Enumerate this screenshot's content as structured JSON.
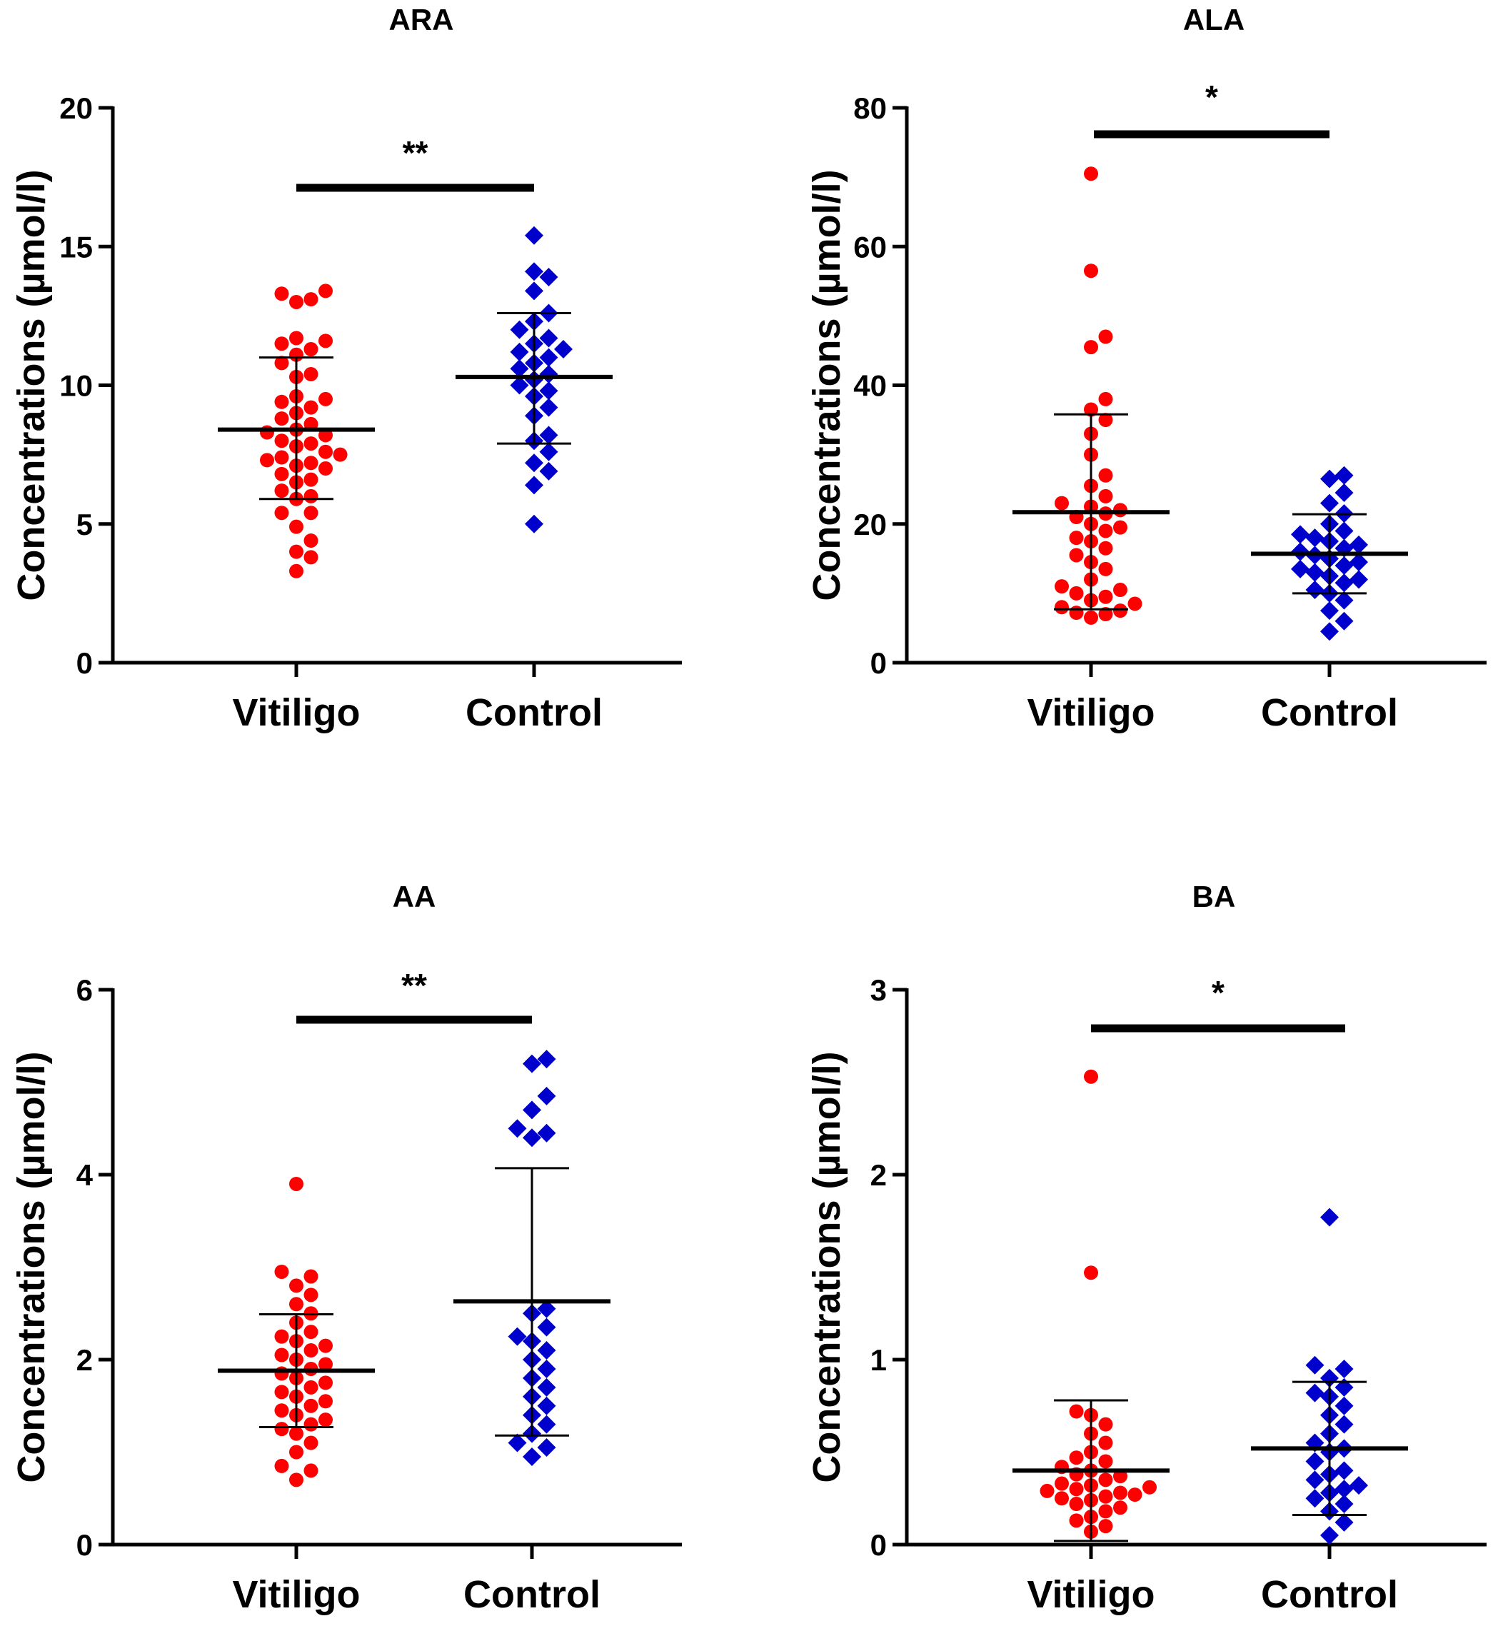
{
  "chart_data": [
    {
      "type": "scatter",
      "title": "ARA",
      "ylabel": "Concentrations (µmol/l)",
      "ylim": [
        0,
        20
      ],
      "yticks": [
        "0",
        "5",
        "10",
        "15",
        "20"
      ],
      "yticks_values": [
        0,
        5,
        10,
        15,
        20
      ],
      "categories": [
        "Vitiligo",
        "Control"
      ],
      "significance": "**",
      "series": [
        {
          "name": "Vitiligo",
          "marker": "circle",
          "color": "#ff0000",
          "mean": 8.4,
          "sd_low": 5.9,
          "sd_high": 11.0,
          "values": [
            3.3,
            3.8,
            4.0,
            4.4,
            4.9,
            5.4,
            5.4,
            5.9,
            6.0,
            6.2,
            6.5,
            6.6,
            6.8,
            7.0,
            7.1,
            7.2,
            7.3,
            7.4,
            7.5,
            7.6,
            7.8,
            7.9,
            8.0,
            8.2,
            8.3,
            8.4,
            8.6,
            8.8,
            9.0,
            9.2,
            9.4,
            9.5,
            9.6,
            10.3,
            10.4,
            10.8,
            11.1,
            11.3,
            11.5,
            11.6,
            11.7,
            13.0,
            13.1,
            13.3,
            13.4
          ]
        },
        {
          "name": "Control",
          "marker": "diamond",
          "color": "#0000cc",
          "mean": 10.3,
          "sd_low": 7.9,
          "sd_high": 12.6,
          "values": [
            5.0,
            6.4,
            6.9,
            7.2,
            7.6,
            8.0,
            8.2,
            8.9,
            9.2,
            9.6,
            9.8,
            10.0,
            10.2,
            10.4,
            10.6,
            10.8,
            11.0,
            11.2,
            11.3,
            11.5,
            11.7,
            12.0,
            12.3,
            12.6,
            13.4,
            13.9,
            14.1,
            15.4
          ]
        }
      ]
    },
    {
      "type": "scatter",
      "title": "ALA",
      "ylabel": "Concentrations (µmol/l)",
      "ylim": [
        0,
        80
      ],
      "yticks": [
        "0",
        "20",
        "40",
        "60",
        "80"
      ],
      "yticks_values": [
        0,
        20,
        40,
        60,
        80
      ],
      "categories": [
        "Vitiligo",
        "Control"
      ],
      "significance": "*",
      "series": [
        {
          "name": "Vitiligo",
          "marker": "circle",
          "color": "#ff0000",
          "mean": 21.7,
          "sd_low": 7.7,
          "sd_high": 35.8,
          "values": [
            6.5,
            7.0,
            7.2,
            7.5,
            8.0,
            8.5,
            9.0,
            9.5,
            10.0,
            10.5,
            11.0,
            12.0,
            13.5,
            14.5,
            15.5,
            16.5,
            17.5,
            18.0,
            19.0,
            19.5,
            20.0,
            21.0,
            21.5,
            22.0,
            22.5,
            23.0,
            24.0,
            25.5,
            27.0,
            30.0,
            33.0,
            35.0,
            36.5,
            38.0,
            45.5,
            47.0,
            56.5,
            70.5
          ]
        },
        {
          "name": "Control",
          "marker": "diamond",
          "color": "#0000cc",
          "mean": 15.7,
          "sd_low": 10.0,
          "sd_high": 21.4,
          "values": [
            4.5,
            6.0,
            7.5,
            9.0,
            10.0,
            10.5,
            11.5,
            12.0,
            12.5,
            13.0,
            13.5,
            14.0,
            14.5,
            15.0,
            15.5,
            16.0,
            16.5,
            17.0,
            17.5,
            18.0,
            18.5,
            19.0,
            20.0,
            21.5,
            23.0,
            24.5,
            26.5,
            27.0
          ]
        }
      ]
    },
    {
      "type": "scatter",
      "title": "AA",
      "ylabel": "Concentrations (µmol/l)",
      "ylim": [
        0,
        6
      ],
      "yticks": [
        "0",
        "2",
        "4",
        "6"
      ],
      "yticks_values": [
        0,
        2,
        4,
        6
      ],
      "categories": [
        "Vitiligo",
        "Control"
      ],
      "significance": "**",
      "series": [
        {
          "name": "Vitiligo",
          "marker": "circle",
          "color": "#ff0000",
          "mean": 1.88,
          "sd_low": 1.27,
          "sd_high": 2.49,
          "values": [
            0.7,
            0.8,
            0.85,
            1.0,
            1.1,
            1.2,
            1.25,
            1.3,
            1.35,
            1.4,
            1.45,
            1.5,
            1.55,
            1.6,
            1.65,
            1.7,
            1.75,
            1.8,
            1.85,
            1.9,
            1.95,
            2.0,
            2.05,
            2.1,
            2.15,
            2.2,
            2.25,
            2.3,
            2.4,
            2.5,
            2.6,
            2.7,
            2.8,
            2.9,
            2.95,
            3.9
          ]
        },
        {
          "name": "Control",
          "marker": "diamond",
          "color": "#0000cc",
          "mean": 2.63,
          "sd_low": 1.18,
          "sd_high": 4.07,
          "values": [
            0.95,
            1.05,
            1.1,
            1.2,
            1.3,
            1.4,
            1.5,
            1.6,
            1.7,
            1.8,
            1.9,
            2.0,
            2.1,
            2.2,
            2.25,
            2.35,
            2.5,
            2.55,
            4.4,
            4.45,
            4.5,
            4.7,
            4.85,
            5.2,
            5.25
          ]
        }
      ]
    },
    {
      "type": "scatter",
      "title": "BA",
      "ylabel": "Concentrations (µmol/l)",
      "ylim": [
        0,
        3
      ],
      "yticks": [
        "0",
        "1",
        "2",
        "3"
      ],
      "yticks_values": [
        0,
        1,
        2,
        3
      ],
      "categories": [
        "Vitiligo",
        "Control"
      ],
      "significance": "*",
      "series": [
        {
          "name": "Vitiligo",
          "marker": "circle",
          "color": "#ff0000",
          "mean": 0.4,
          "sd_low": 0.02,
          "sd_high": 0.78,
          "values": [
            0.07,
            0.1,
            0.13,
            0.15,
            0.18,
            0.2,
            0.22,
            0.24,
            0.25,
            0.26,
            0.27,
            0.28,
            0.29,
            0.3,
            0.31,
            0.32,
            0.33,
            0.35,
            0.37,
            0.38,
            0.4,
            0.42,
            0.45,
            0.47,
            0.5,
            0.55,
            0.6,
            0.65,
            0.7,
            0.72,
            1.47,
            2.53
          ]
        },
        {
          "name": "Control",
          "marker": "diamond",
          "color": "#0000cc",
          "mean": 0.52,
          "sd_low": 0.16,
          "sd_high": 0.88,
          "values": [
            0.05,
            0.12,
            0.18,
            0.22,
            0.25,
            0.28,
            0.3,
            0.32,
            0.35,
            0.38,
            0.4,
            0.45,
            0.5,
            0.52,
            0.55,
            0.6,
            0.65,
            0.7,
            0.75,
            0.8,
            0.82,
            0.85,
            0.9,
            0.95,
            0.97,
            1.77
          ]
        }
      ]
    }
  ]
}
